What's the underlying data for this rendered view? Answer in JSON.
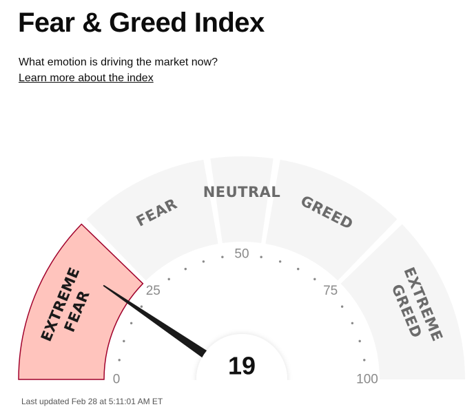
{
  "header": {
    "title": "Fear & Greed Index",
    "subtitle": "What emotion is driving the market now?",
    "learn_more_link": "Learn more about the index"
  },
  "gauge": {
    "value": 19,
    "value_label": "19",
    "min": 0,
    "max": 100,
    "active_segment": "extreme-fear",
    "segments": [
      {
        "id": "extreme-fear",
        "lines": [
          "EXTREME",
          "FEAR"
        ],
        "from": 0,
        "to": 25
      },
      {
        "id": "fear",
        "lines": [
          "FEAR"
        ],
        "from": 25,
        "to": 45
      },
      {
        "id": "neutral",
        "lines": [
          "NEUTRAL"
        ],
        "from": 45,
        "to": 55
      },
      {
        "id": "greed",
        "lines": [
          "GREED"
        ],
        "from": 55,
        "to": 75
      },
      {
        "id": "extreme-greed",
        "lines": [
          "EXTREME",
          "GREED"
        ],
        "from": 75,
        "to": 100
      }
    ],
    "scale_labels": [
      "0",
      "25",
      "50",
      "75",
      "100"
    ],
    "colors": {
      "segment_fill": "#f5f5f5",
      "active_fill": "#ffc4bd",
      "active_stroke": "#a0002b",
      "segment_text": "#6b6b6b",
      "active_text": "#1a1a1a",
      "needle": "#1a1a1a",
      "dots": "#8a8a8a",
      "scale_text": "#8a8a8a"
    }
  },
  "footer": {
    "last_updated": "Last updated Feb 28 at 5:11:01 AM ET"
  }
}
